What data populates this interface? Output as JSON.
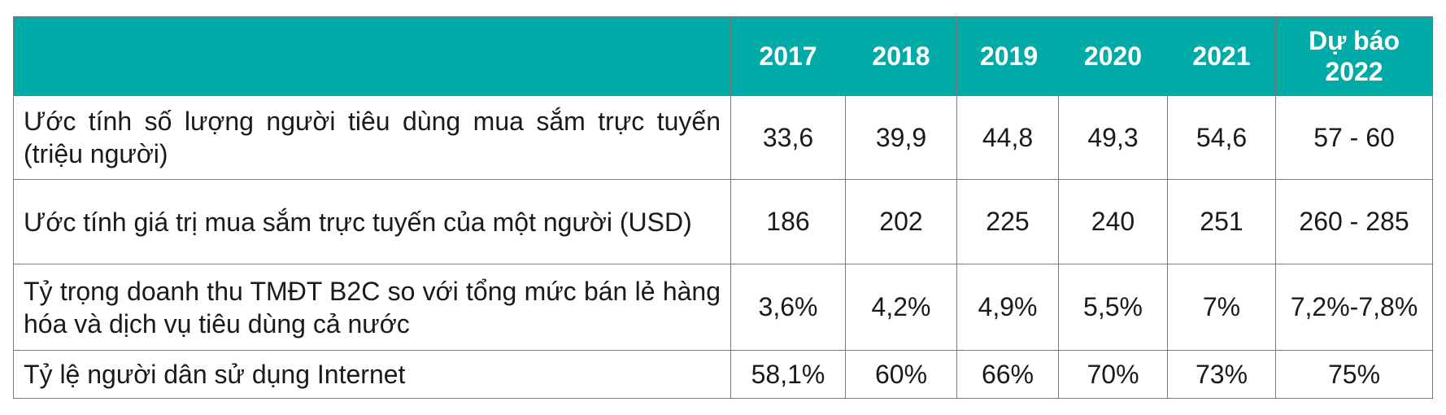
{
  "table": {
    "columns": [
      "2017",
      "2018",
      "2019",
      "2020",
      "2021",
      "Dự báo 2022"
    ],
    "rows": [
      {
        "label": "Ước tính số lượng người tiêu dùng mua sắm trực tuyến (triệu người)",
        "values": [
          "33,6",
          "39,9",
          "44,8",
          "49,3",
          "54,6",
          "57 - 60"
        ]
      },
      {
        "label": "Ước tính giá trị mua sắm trực tuyến của một người (USD)",
        "values": [
          "186",
          "202",
          "225",
          "240",
          "251",
          "260 - 285"
        ]
      },
      {
        "label": "Tỷ trọng doanh thu TMĐT B2C so với tổng mức bán lẻ hàng hóa và dịch vụ tiêu dùng cả nước",
        "values": [
          "3,6%",
          "4,2%",
          "4,9%",
          "5,5%",
          "7%",
          "7,2%-7,8%"
        ]
      },
      {
        "label": "Tỷ lệ người dân sử dụng Internet",
        "values": [
          "58,1%",
          "60%",
          "66%",
          "70%",
          "73%",
          "75%"
        ]
      }
    ]
  }
}
